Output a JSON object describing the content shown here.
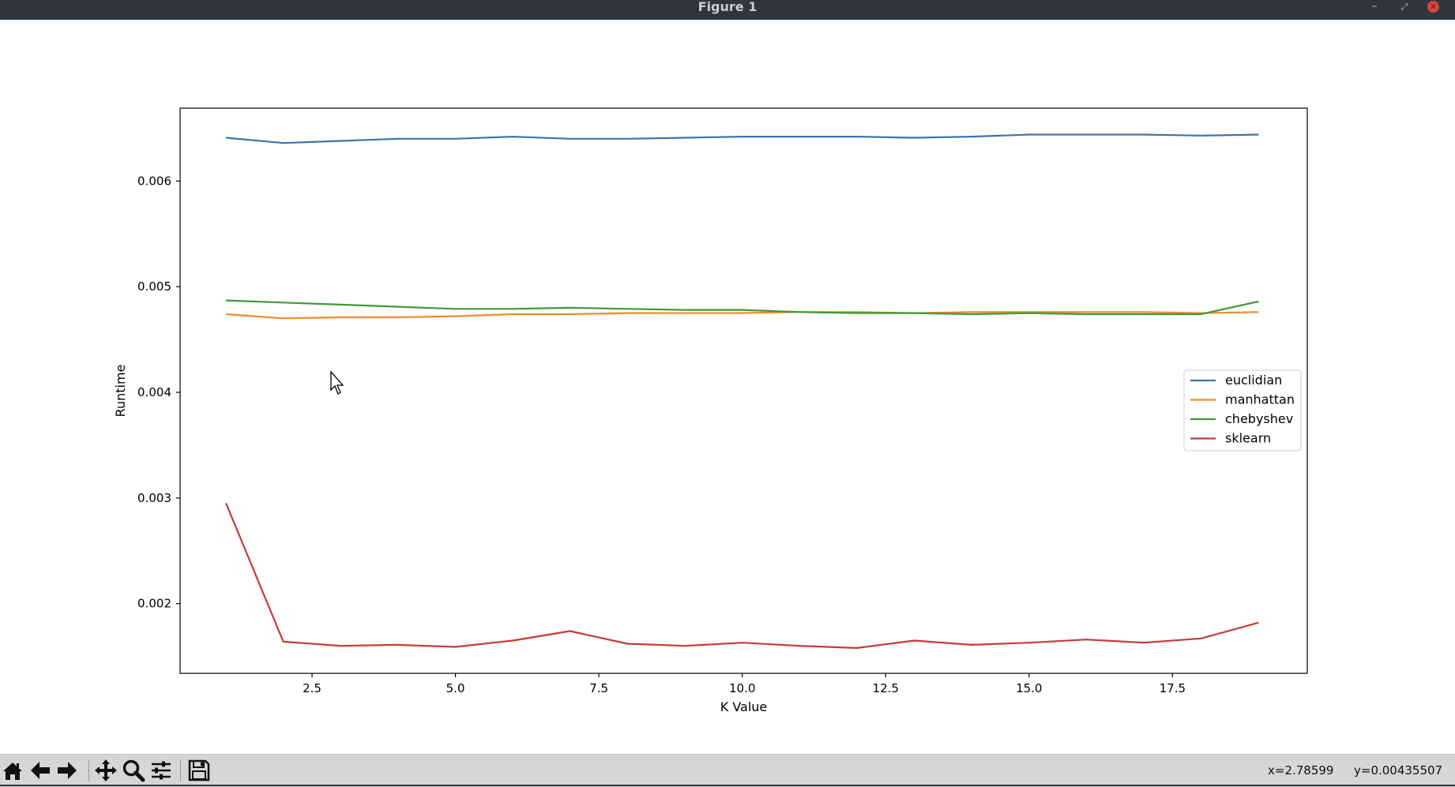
{
  "window": {
    "title": "Figure 1",
    "minimize_glyph": "–",
    "maximize_glyph": "⤢",
    "close_glyph": "✕"
  },
  "toolbar": {
    "buttons": [
      {
        "name": "home-icon"
      },
      {
        "name": "back-arrow-icon"
      },
      {
        "name": "forward-arrow-icon"
      },
      {
        "name": "pan-icon"
      },
      {
        "name": "zoom-icon"
      },
      {
        "name": "configure-subplots-icon"
      },
      {
        "name": "save-icon"
      }
    ],
    "coord_x": "x=2.78599",
    "coord_y": "y=0.00435507"
  },
  "chart_data": {
    "type": "line",
    "title": "",
    "xlabel": "K Value",
    "ylabel": "Runtime",
    "xlim": [
      0.2,
      19.85
    ],
    "ylim": [
      0.00134,
      0.00669
    ],
    "xticks": [
      2.5,
      5.0,
      7.5,
      10.0,
      12.5,
      15.0,
      17.5
    ],
    "xtick_labels": [
      "2.5",
      "5.0",
      "7.5",
      "10.0",
      "12.5",
      "15.0",
      "17.5"
    ],
    "yticks": [
      0.002,
      0.003,
      0.004,
      0.005,
      0.006
    ],
    "ytick_labels": [
      "0.002",
      "0.003",
      "0.004",
      "0.005",
      "0.006"
    ],
    "grid": false,
    "legend_position": "center-right",
    "x": [
      1,
      2,
      3,
      4,
      5,
      6,
      7,
      8,
      9,
      10,
      11,
      12,
      13,
      14,
      15,
      16,
      17,
      18,
      19
    ],
    "series": [
      {
        "name": "euclidian",
        "color": "#3a75b0",
        "values": [
          0.00641,
          0.00636,
          0.00638,
          0.0064,
          0.0064,
          0.00642,
          0.0064,
          0.0064,
          0.00641,
          0.00642,
          0.00642,
          0.00642,
          0.00641,
          0.00642,
          0.00644,
          0.00644,
          0.00644,
          0.00643,
          0.00644
        ]
      },
      {
        "name": "manhattan",
        "color": "#f08b2f",
        "values": [
          0.00474,
          0.0047,
          0.00471,
          0.00471,
          0.00472,
          0.00474,
          0.00474,
          0.00475,
          0.00475,
          0.00475,
          0.00476,
          0.00476,
          0.00475,
          0.00476,
          0.00476,
          0.00476,
          0.00476,
          0.00475,
          0.00476
        ]
      },
      {
        "name": "chebyshev",
        "color": "#3e9a3a",
        "values": [
          0.00487,
          0.00485,
          0.00483,
          0.00481,
          0.00479,
          0.00479,
          0.0048,
          0.00479,
          0.00478,
          0.00478,
          0.00476,
          0.00475,
          0.00475,
          0.00474,
          0.00475,
          0.00474,
          0.00474,
          0.00474,
          0.00486
        ]
      },
      {
        "name": "sklearn",
        "color": "#c83a37",
        "values": [
          0.00295,
          0.00164,
          0.0016,
          0.00161,
          0.00159,
          0.00165,
          0.00174,
          0.00162,
          0.0016,
          0.00163,
          0.0016,
          0.00158,
          0.00165,
          0.00161,
          0.00163,
          0.00166,
          0.00163,
          0.00167,
          0.00182
        ]
      }
    ]
  }
}
